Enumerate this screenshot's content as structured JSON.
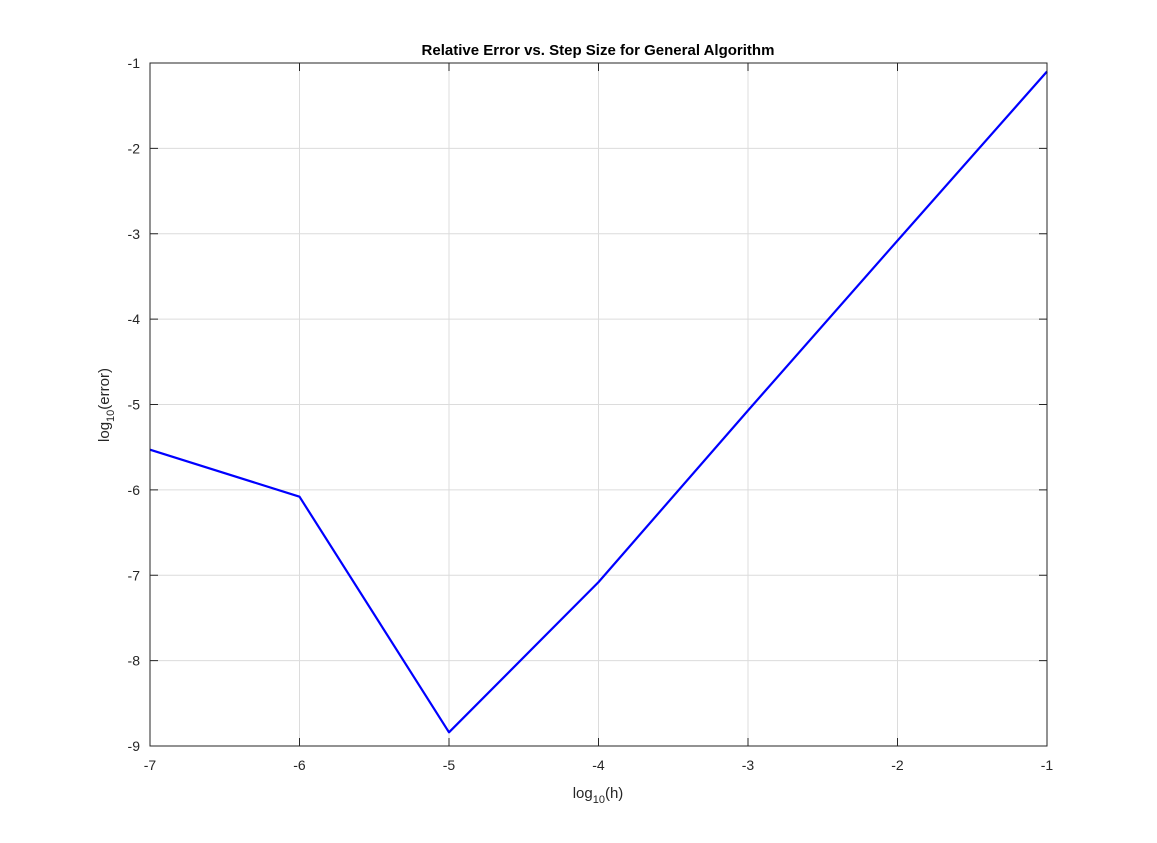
{
  "chart_data": {
    "type": "line",
    "title": "Relative Error vs. Step Size for General Algorithm",
    "xlabel": {
      "main": "log",
      "sub": "10",
      "rest": "(h)"
    },
    "ylabel": {
      "main": "log",
      "sub": "10",
      "rest": "(error)"
    },
    "xlim": [
      -7,
      -1
    ],
    "ylim": [
      -9,
      -1
    ],
    "xticks": [
      -7,
      -6,
      -5,
      -4,
      -3,
      -2,
      -1
    ],
    "yticks": [
      -9,
      -8,
      -7,
      -6,
      -5,
      -4,
      -3,
      -2,
      -1
    ],
    "xtick_labels": [
      "-7",
      "-6",
      "-5",
      "-4",
      "-3",
      "-2",
      "-1"
    ],
    "ytick_labels": [
      "-9",
      "-8",
      "-7",
      "-6",
      "-5",
      "-4",
      "-3",
      "-2",
      "-1"
    ],
    "grid": true,
    "series": [
      {
        "color": "#0000ff",
        "x": [
          -7,
          -6,
          -5,
          -4,
          -3,
          -2,
          -1
        ],
        "y": [
          -5.53,
          -6.08,
          -8.84,
          -7.08,
          -5.07,
          -3.08,
          -1.1
        ]
      }
    ]
  }
}
